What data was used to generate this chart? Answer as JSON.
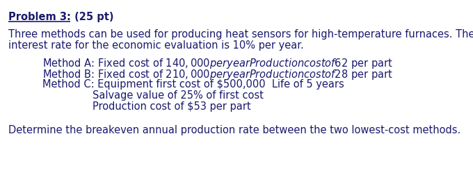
{
  "title_bold_underline": "Problem 3:",
  "title_normal": " (25 pt)",
  "body_line1": "Three methods can be used for producing heat sensors for high-temperature furnaces. The",
  "body_line2": "interest rate for the economic evaluation is 10% per year.",
  "method_a": "Method A: Fixed cost of $140,000 per year  Production cost of $62 per part",
  "method_b": "Method B: Fixed cost of $210,000 per year  Production cost of $28 per part",
  "method_c": "Method C: Equipment first cost of $500,000  Life of 5 years",
  "method_c2": "Salvage value of 25% of first cost",
  "method_c3": "Production cost of $53 per part",
  "question": "Determine the breakeven annual production rate between the two lowest-cost methods.",
  "bg_color": "#ffffff",
  "text_color": "#1a1a6e",
  "font_size": 10.5,
  "indent_methods": 0.09,
  "indent_c_sub": 0.195
}
